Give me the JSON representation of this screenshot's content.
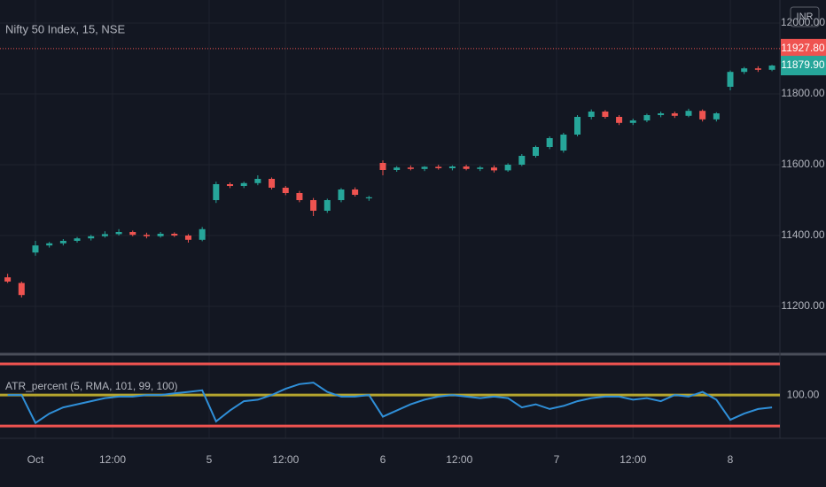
{
  "chart_data": [
    {
      "type": "candlestick",
      "title": "Nifty 50 Index, 15, NSE",
      "currency": "INR",
      "up_color": "#26a69a",
      "down_color": "#ef5350",
      "grid": true,
      "x": [
        -2,
        -1,
        0,
        1,
        2,
        3,
        4,
        5,
        6,
        7,
        8,
        9,
        10,
        11,
        12,
        13,
        14,
        15,
        16,
        17,
        18,
        19,
        20,
        21,
        22,
        23,
        24,
        25,
        26,
        27,
        28,
        29,
        30,
        31,
        32,
        33,
        34,
        35,
        36,
        37,
        38,
        39,
        40,
        41,
        42,
        43,
        44,
        45,
        46,
        47,
        48,
        49,
        50,
        51,
        52,
        53
      ],
      "candles": [
        [
          11282,
          11292,
          11266,
          11270
        ],
        [
          11266,
          11270,
          11225,
          11232
        ],
        [
          11352,
          11385,
          11343,
          11372
        ],
        [
          11372,
          11382,
          11366,
          11378
        ],
        [
          11378,
          11390,
          11372,
          11385
        ],
        [
          11385,
          11396,
          11380,
          11392
        ],
        [
          11392,
          11402,
          11386,
          11398
        ],
        [
          11398,
          11412,
          11394,
          11404
        ],
        [
          11404,
          11418,
          11400,
          11410
        ],
        [
          11410,
          11414,
          11398,
          11402
        ],
        [
          11402,
          11408,
          11392,
          11398
        ],
        [
          11398,
          11410,
          11394,
          11405
        ],
        [
          11405,
          11409,
          11396,
          11400
        ],
        [
          11400,
          11404,
          11380,
          11388
        ],
        [
          11388,
          11424,
          11384,
          11418
        ],
        [
          11500,
          11552,
          11492,
          11545
        ],
        [
          11545,
          11550,
          11534,
          11540
        ],
        [
          11540,
          11552,
          11534,
          11548
        ],
        [
          11548,
          11570,
          11542,
          11560
        ],
        [
          11560,
          11564,
          11530,
          11535
        ],
        [
          11535,
          11540,
          11514,
          11520
        ],
        [
          11520,
          11526,
          11494,
          11500
        ],
        [
          11500,
          11506,
          11455,
          11470
        ],
        [
          11470,
          11504,
          11464,
          11500
        ],
        [
          11500,
          11534,
          11494,
          11530
        ],
        [
          11530,
          11536,
          11510,
          11515
        ],
        [
          11505,
          11512,
          11498,
          11508
        ],
        [
          11605,
          11612,
          11570,
          11585
        ],
        [
          11585,
          11596,
          11580,
          11592
        ],
        [
          11592,
          11598,
          11584,
          11588
        ],
        [
          11588,
          11596,
          11582,
          11594
        ],
        [
          11594,
          11600,
          11586,
          11590
        ],
        [
          11590,
          11598,
          11584,
          11595
        ],
        [
          11595,
          11600,
          11584,
          11588
        ],
        [
          11588,
          11596,
          11582,
          11592
        ],
        [
          11592,
          11598,
          11578,
          11584
        ],
        [
          11584,
          11604,
          11580,
          11600
        ],
        [
          11600,
          11630,
          11596,
          11625
        ],
        [
          11625,
          11654,
          11620,
          11650
        ],
        [
          11650,
          11680,
          11644,
          11675
        ],
        [
          11640,
          11690,
          11634,
          11685
        ],
        [
          11685,
          11740,
          11680,
          11735
        ],
        [
          11735,
          11756,
          11728,
          11750
        ],
        [
          11750,
          11754,
          11730,
          11735
        ],
        [
          11735,
          11740,
          11712,
          11718
        ],
        [
          11718,
          11730,
          11712,
          11725
        ],
        [
          11725,
          11744,
          11720,
          11740
        ],
        [
          11740,
          11750,
          11734,
          11745
        ],
        [
          11745,
          11750,
          11732,
          11738
        ],
        [
          11738,
          11758,
          11734,
          11752
        ],
        [
          11752,
          11756,
          11722,
          11728
        ],
        [
          11728,
          11748,
          11722,
          11745
        ],
        [
          11820,
          11866,
          11810,
          11862
        ],
        [
          11862,
          11876,
          11856,
          11872
        ],
        [
          11872,
          11878,
          11862,
          11868
        ],
        [
          11868,
          11882,
          11864,
          11879.9
        ]
      ],
      "xlim": [
        -2.55,
        53.57
      ],
      "ylim": [
        11070,
        12065
      ],
      "yticks": [
        {
          "value": 11200,
          "label": "11200.00"
        },
        {
          "value": 11400,
          "label": "11400.00"
        },
        {
          "value": 11600,
          "label": "11600.00"
        },
        {
          "value": 11800,
          "label": "11800.00"
        },
        {
          "value": 12000,
          "label": "12000.00"
        }
      ],
      "xticks": [
        {
          "value": 0,
          "label": "Oct"
        },
        {
          "value": 5.55,
          "label": "12:00"
        },
        {
          "value": 12.5,
          "label": "5"
        },
        {
          "value": 18,
          "label": "12:00"
        },
        {
          "value": 25,
          "label": "6"
        },
        {
          "value": 30.5,
          "label": "12:00"
        },
        {
          "value": 37.5,
          "label": "7"
        },
        {
          "value": 43,
          "label": "12:00"
        },
        {
          "value": 50,
          "label": "8"
        }
      ],
      "reference_price": {
        "value": 11927.8,
        "label": "11927.80",
        "color": "#ef5350"
      },
      "last_price": {
        "value": 11879.9,
        "label": "11879.90",
        "color": "#26a69a"
      }
    },
    {
      "type": "line",
      "title": "ATR_percent (5, RMA, 101, 99, 100)",
      "color": "#2f8fd8",
      "values": [
        100.0,
        100.0,
        99.1,
        99.4,
        99.6,
        99.7,
        99.8,
        99.9,
        99.95,
        99.95,
        100.0,
        100.0,
        100.05,
        100.1,
        100.15,
        99.15,
        99.5,
        99.8,
        99.85,
        100.0,
        100.2,
        100.35,
        100.4,
        100.1,
        99.95,
        99.95,
        100.0,
        99.3,
        99.5,
        99.7,
        99.85,
        99.95,
        100.0,
        99.95,
        99.9,
        99.95,
        99.9,
        99.6,
        99.7,
        99.55,
        99.65,
        99.8,
        99.9,
        99.95,
        99.95,
        99.85,
        99.9,
        99.8,
        100.0,
        99.95,
        100.1,
        99.85,
        99.2,
        99.4,
        99.55,
        99.6
      ],
      "levels": [
        {
          "value": 101,
          "color": "#ef5350"
        },
        {
          "value": 99,
          "color": "#ef5350"
        },
        {
          "value": 100,
          "color": "#b5a52e"
        }
      ],
      "ylim": [
        98.69,
        101.23
      ],
      "yticks": [
        {
          "value": 100,
          "label": "100.00"
        }
      ]
    }
  ]
}
